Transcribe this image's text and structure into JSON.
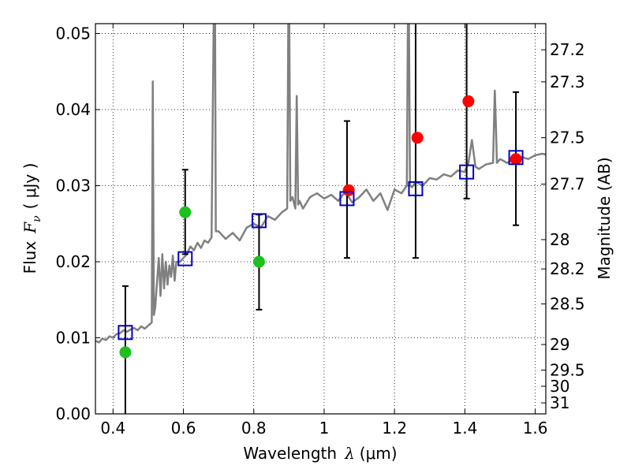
{
  "chart_data": {
    "type": "scatter",
    "xlabel": {
      "prefix": "Wavelength",
      "symbol": "λ",
      "unit": "(μm)"
    },
    "ylabel": {
      "prefix": "Flux",
      "symbol": "F",
      "subscript": "ν",
      "unit": "( μJy )"
    },
    "y2label": "Magnitude (AB)",
    "xlim": [
      0.35,
      1.63
    ],
    "ylim": [
      0.0,
      0.0513
    ],
    "grid": true,
    "x_ticks": [
      {
        "value": 0.4,
        "label": "0.4"
      },
      {
        "value": 0.6,
        "label": "0.6"
      },
      {
        "value": 0.8,
        "label": "0.8"
      },
      {
        "value": 1.0,
        "label": "1"
      },
      {
        "value": 1.2,
        "label": "1.2"
      },
      {
        "value": 1.4,
        "label": "1.4"
      },
      {
        "value": 1.6,
        "label": "1.6"
      }
    ],
    "y_ticks": [
      {
        "value": 0.0,
        "label": "0.00"
      },
      {
        "value": 0.01,
        "label": "0.01"
      },
      {
        "value": 0.02,
        "label": "0.02"
      },
      {
        "value": 0.03,
        "label": "0.03"
      },
      {
        "value": 0.04,
        "label": "0.04"
      },
      {
        "value": 0.05,
        "label": "0.05"
      }
    ],
    "y2_ticks": [
      {
        "mag": 27.2,
        "label": "27.2"
      },
      {
        "mag": 27.3,
        "label": "27.3"
      },
      {
        "mag": 27.5,
        "label": "27.5"
      },
      {
        "mag": 27.7,
        "label": "27.7"
      },
      {
        "mag": 28.0,
        "label": "28"
      },
      {
        "mag": 28.2,
        "label": "28.2"
      },
      {
        "mag": 28.5,
        "label": "28.5"
      },
      {
        "mag": 29.0,
        "label": "29"
      },
      {
        "mag": 29.5,
        "label": "29.5"
      },
      {
        "mag": 30.0,
        "label": "30"
      },
      {
        "mag": 31.0,
        "label": "31"
      }
    ],
    "series": [
      {
        "name": "model-spectrum",
        "kind": "line",
        "color": "#808080",
        "x": [
          0.35,
          0.36,
          0.37,
          0.38,
          0.39,
          0.4,
          0.41,
          0.42,
          0.43,
          0.44,
          0.45,
          0.46,
          0.47,
          0.48,
          0.49,
          0.5,
          0.505,
          0.51,
          0.513,
          0.516,
          0.52,
          0.53,
          0.535,
          0.54,
          0.545,
          0.55,
          0.555,
          0.56,
          0.565,
          0.57,
          0.575,
          0.58,
          0.59,
          0.6,
          0.61,
          0.62,
          0.63,
          0.64,
          0.65,
          0.66,
          0.67,
          0.68,
          0.686,
          0.688,
          0.69,
          0.692,
          0.7,
          0.72,
          0.74,
          0.76,
          0.78,
          0.8,
          0.82,
          0.84,
          0.86,
          0.88,
          0.895,
          0.898,
          0.901,
          0.904,
          0.91,
          0.918,
          0.922,
          0.926,
          0.93,
          0.94,
          0.96,
          0.98,
          1.0,
          1.02,
          1.04,
          1.06,
          1.08,
          1.1,
          1.12,
          1.14,
          1.16,
          1.18,
          1.2,
          1.22,
          1.235,
          1.238,
          1.241,
          1.244,
          1.25,
          1.26,
          1.28,
          1.3,
          1.32,
          1.34,
          1.36,
          1.38,
          1.4,
          1.41,
          1.42,
          1.43,
          1.44,
          1.46,
          1.48,
          1.485,
          1.488,
          1.491,
          1.5,
          1.52,
          1.54,
          1.56,
          1.58,
          1.6,
          1.62,
          1.63
        ],
        "y": [
          0.0096,
          0.0094,
          0.0099,
          0.0097,
          0.0102,
          0.01,
          0.0105,
          0.0106,
          0.011,
          0.0108,
          0.0111,
          0.0113,
          0.011,
          0.0115,
          0.0112,
          0.0116,
          0.0118,
          0.012,
          0.0437,
          0.013,
          0.014,
          0.0205,
          0.0155,
          0.021,
          0.0165,
          0.02,
          0.017,
          0.0195,
          0.018,
          0.0208,
          0.0175,
          0.02,
          0.02,
          0.0205,
          0.021,
          0.022,
          0.0215,
          0.0225,
          0.0218,
          0.0228,
          0.0225,
          0.0232,
          0.0513,
          0.0513,
          0.0513,
          0.024,
          0.024,
          0.023,
          0.0238,
          0.0228,
          0.0245,
          0.025,
          0.0245,
          0.026,
          0.0255,
          0.0265,
          0.027,
          0.0513,
          0.0513,
          0.028,
          0.0285,
          0.027,
          0.0418,
          0.0275,
          0.028,
          0.027,
          0.0285,
          0.029,
          0.0283,
          0.0288,
          0.028,
          0.0292,
          0.0278,
          0.0285,
          0.0295,
          0.028,
          0.029,
          0.0268,
          0.0295,
          0.029,
          0.03,
          0.0513,
          0.0513,
          0.03,
          0.0298,
          0.0305,
          0.03,
          0.031,
          0.0308,
          0.0315,
          0.0312,
          0.032,
          0.0318,
          0.033,
          0.036,
          0.0325,
          0.0322,
          0.0328,
          0.033,
          0.0425,
          0.038,
          0.033,
          0.0335,
          0.033,
          0.0335,
          0.0338,
          0.0335,
          0.034,
          0.0342,
          0.0341
        ]
      },
      {
        "name": "observed-green",
        "kind": "points",
        "color": "#1fbf1f",
        "x": [
          0.435,
          0.605,
          0.815
        ],
        "y": [
          0.0081,
          0.0265,
          0.02
        ]
      },
      {
        "name": "observed-red",
        "kind": "points",
        "color": "#ff0000",
        "x": [
          1.07,
          1.265,
          1.41,
          1.545
        ],
        "y": [
          0.0294,
          0.0363,
          0.0411,
          0.0335
        ]
      },
      {
        "name": "model-photometry",
        "kind": "squares",
        "color": "#0000cc",
        "x": [
          0.435,
          0.605,
          0.815,
          1.065,
          1.26,
          1.405,
          1.545
        ],
        "y": [
          0.0107,
          0.0204,
          0.0254,
          0.0283,
          0.0296,
          0.0318,
          0.0337
        ]
      },
      {
        "name": "error-bars",
        "kind": "errorbars",
        "color": "#000000",
        "x": [
          0.435,
          0.605,
          0.815,
          1.065,
          1.26,
          1.405,
          1.545
        ],
        "low": [
          0.0,
          0.021,
          0.0137,
          0.0205,
          0.0205,
          0.0283,
          0.0248
        ],
        "high": [
          0.0168,
          0.0321,
          0.0262,
          0.0385,
          0.0513,
          0.0513,
          0.0423
        ]
      }
    ]
  }
}
